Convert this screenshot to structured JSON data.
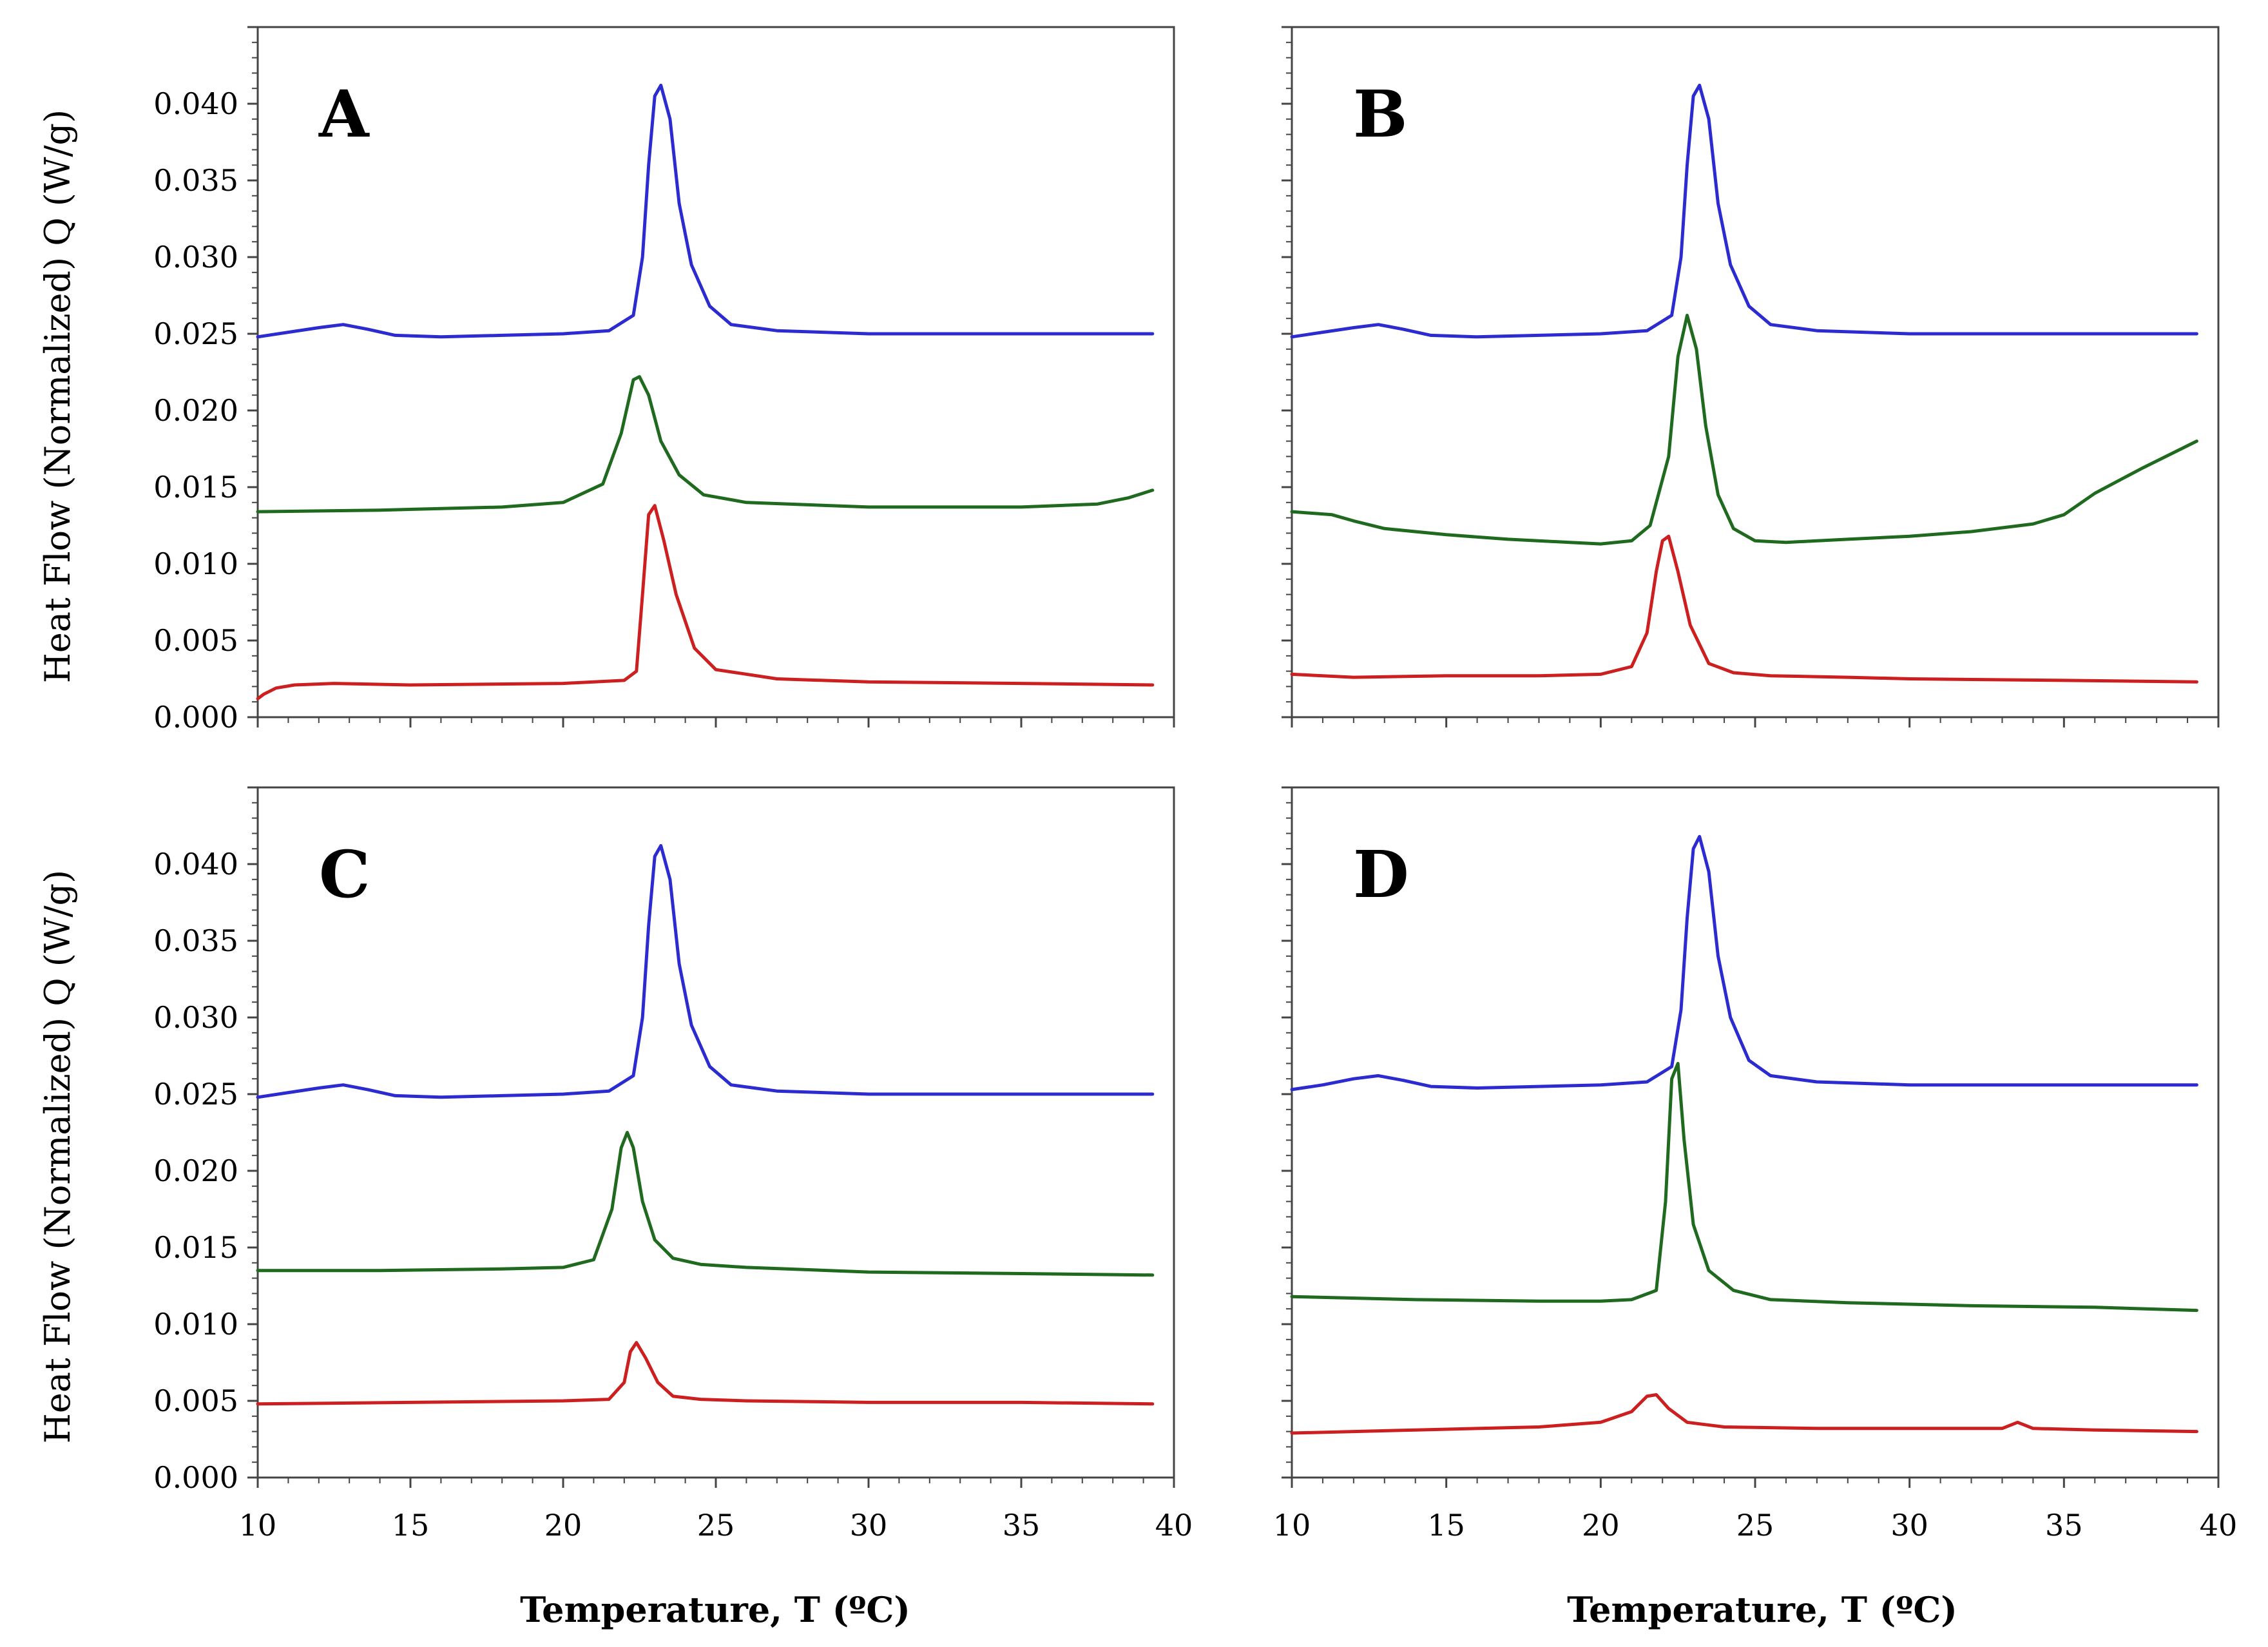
{
  "figure": {
    "ylabel": "Heat Flow (Normalized) Q (W/g)",
    "xlabel": "Temperature, T (ºC)"
  },
  "colors": {
    "blue": "#2b2bd0",
    "green": "#1f6a1f",
    "red": "#cc1f1f"
  },
  "chart_data": [
    {
      "type": "line",
      "panel": "A",
      "xlabel": "",
      "ylabel": "Heat Flow (Normalized) Q (W/g)",
      "xlim": [
        10,
        40
      ],
      "ylim": [
        0,
        0.045
      ],
      "xticks": [],
      "yticks": [
        "0.000",
        "0.005",
        "0.010",
        "0.015",
        "0.020",
        "0.025",
        "0.030",
        "0.035",
        "0.040"
      ],
      "series": [
        {
          "name": "blue",
          "color": "#2b2bd0",
          "x": [
            10,
            11,
            12,
            12.8,
            13.6,
            14.5,
            16,
            18,
            20,
            21.5,
            22.3,
            22.6,
            22.8,
            23.0,
            23.2,
            23.5,
            23.8,
            24.2,
            24.8,
            25.5,
            27,
            30,
            35,
            39.3
          ],
          "y": [
            0.0248,
            0.0251,
            0.0254,
            0.0256,
            0.0253,
            0.0249,
            0.0248,
            0.0249,
            0.025,
            0.0252,
            0.0262,
            0.03,
            0.036,
            0.0405,
            0.0412,
            0.039,
            0.0335,
            0.0295,
            0.0268,
            0.0256,
            0.0252,
            0.025,
            0.025,
            0.025
          ]
        },
        {
          "name": "green",
          "color": "#1f6a1f",
          "x": [
            10,
            14,
            18,
            20,
            21.3,
            21.9,
            22.3,
            22.5,
            22.8,
            23.2,
            23.8,
            24.6,
            26,
            30,
            35,
            37.5,
            38.5,
            39.3
          ],
          "y": [
            0.0134,
            0.0135,
            0.0137,
            0.014,
            0.0152,
            0.0185,
            0.022,
            0.0222,
            0.021,
            0.018,
            0.0158,
            0.0145,
            0.014,
            0.0137,
            0.0137,
            0.0139,
            0.0143,
            0.0148
          ]
        },
        {
          "name": "red",
          "color": "#cc1f1f",
          "x": [
            10,
            10.2,
            10.6,
            11.2,
            12.5,
            15,
            20,
            22,
            22.4,
            22.6,
            22.8,
            23.0,
            23.3,
            23.7,
            24.3,
            25,
            27,
            30,
            35,
            39.3
          ],
          "y": [
            0.0012,
            0.0015,
            0.0019,
            0.0021,
            0.0022,
            0.0021,
            0.0022,
            0.0024,
            0.003,
            0.008,
            0.0132,
            0.0138,
            0.0115,
            0.008,
            0.0045,
            0.0031,
            0.0025,
            0.0023,
            0.0022,
            0.0021
          ]
        }
      ]
    },
    {
      "type": "line",
      "panel": "B",
      "xlabel": "",
      "ylabel": "",
      "xlim": [
        10,
        40
      ],
      "ylim": [
        0,
        0.045
      ],
      "xticks": [],
      "yticks": [],
      "series": [
        {
          "name": "blue",
          "color": "#2b2bd0",
          "x": [
            10,
            11,
            12,
            12.8,
            13.6,
            14.5,
            16,
            18,
            20,
            21.5,
            22.3,
            22.6,
            22.8,
            23.0,
            23.2,
            23.5,
            23.8,
            24.2,
            24.8,
            25.5,
            27,
            30,
            35,
            39.3
          ],
          "y": [
            0.0248,
            0.0251,
            0.0254,
            0.0256,
            0.0253,
            0.0249,
            0.0248,
            0.0249,
            0.025,
            0.0252,
            0.0262,
            0.03,
            0.036,
            0.0405,
            0.0412,
            0.039,
            0.0335,
            0.0295,
            0.0268,
            0.0256,
            0.0252,
            0.025,
            0.025,
            0.025
          ]
        },
        {
          "name": "green",
          "color": "#1f6a1f",
          "x": [
            10,
            11.3,
            12,
            13,
            15,
            17,
            19,
            20,
            21,
            21.6,
            22.2,
            22.5,
            22.8,
            23.1,
            23.4,
            23.8,
            24.3,
            25,
            26,
            28,
            30,
            32,
            34,
            35,
            36,
            37.5,
            39.3
          ],
          "y": [
            0.0134,
            0.0132,
            0.0128,
            0.0123,
            0.0119,
            0.0116,
            0.0114,
            0.0113,
            0.0115,
            0.0125,
            0.017,
            0.0235,
            0.0262,
            0.024,
            0.019,
            0.0145,
            0.0123,
            0.0115,
            0.0114,
            0.0116,
            0.0118,
            0.0121,
            0.0126,
            0.0132,
            0.0146,
            0.0162,
            0.018
          ]
        },
        {
          "name": "red",
          "color": "#cc1f1f",
          "x": [
            10,
            12,
            15,
            18,
            20,
            21,
            21.5,
            21.8,
            22.0,
            22.2,
            22.5,
            22.9,
            23.5,
            24.3,
            25.5,
            28,
            30,
            35,
            39.3
          ],
          "y": [
            0.0028,
            0.0026,
            0.0027,
            0.0027,
            0.0028,
            0.0033,
            0.0055,
            0.0095,
            0.0115,
            0.0118,
            0.0095,
            0.006,
            0.0035,
            0.0029,
            0.0027,
            0.0026,
            0.0025,
            0.0024,
            0.0023
          ]
        }
      ]
    },
    {
      "type": "line",
      "panel": "C",
      "xlabel": "Temperature, T (ºC)",
      "ylabel": "Heat Flow (Normalized) Q (W/g)",
      "xlim": [
        10,
        40
      ],
      "ylim": [
        0,
        0.045
      ],
      "xticks": [
        "10",
        "15",
        "20",
        "25",
        "30",
        "35",
        "40"
      ],
      "yticks": [
        "0.000",
        "0.005",
        "0.010",
        "0.015",
        "0.020",
        "0.025",
        "0.030",
        "0.035",
        "0.040"
      ],
      "series": [
        {
          "name": "blue",
          "color": "#2b2bd0",
          "x": [
            10,
            11,
            12,
            12.8,
            13.6,
            14.5,
            16,
            18,
            20,
            21.5,
            22.3,
            22.6,
            22.8,
            23.0,
            23.2,
            23.5,
            23.8,
            24.2,
            24.8,
            25.5,
            27,
            30,
            35,
            39.3
          ],
          "y": [
            0.0248,
            0.0251,
            0.0254,
            0.0256,
            0.0253,
            0.0249,
            0.0248,
            0.0249,
            0.025,
            0.0252,
            0.0262,
            0.03,
            0.036,
            0.0405,
            0.0412,
            0.039,
            0.0335,
            0.0295,
            0.0268,
            0.0256,
            0.0252,
            0.025,
            0.025,
            0.025
          ]
        },
        {
          "name": "green",
          "color": "#1f6a1f",
          "x": [
            10,
            14,
            18,
            20,
            21,
            21.6,
            21.9,
            22.1,
            22.3,
            22.6,
            23,
            23.6,
            24.5,
            26,
            30,
            35,
            39.3
          ],
          "y": [
            0.0135,
            0.0135,
            0.0136,
            0.0137,
            0.0142,
            0.0175,
            0.0215,
            0.0225,
            0.0215,
            0.018,
            0.0155,
            0.0143,
            0.0139,
            0.0137,
            0.0134,
            0.0133,
            0.0132
          ]
        },
        {
          "name": "red",
          "color": "#cc1f1f",
          "x": [
            10,
            15,
            20,
            21.5,
            22,
            22.2,
            22.4,
            22.7,
            23.1,
            23.6,
            24.5,
            26,
            30,
            35,
            39.3
          ],
          "y": [
            0.0048,
            0.0049,
            0.005,
            0.0051,
            0.0062,
            0.0082,
            0.0088,
            0.0078,
            0.0062,
            0.0053,
            0.0051,
            0.005,
            0.0049,
            0.0049,
            0.0048
          ]
        }
      ]
    },
    {
      "type": "line",
      "panel": "D",
      "xlabel": "Temperature, T (ºC)",
      "ylabel": "",
      "xlim": [
        10,
        40
      ],
      "ylim": [
        0,
        0.045
      ],
      "xticks": [
        "10",
        "15",
        "20",
        "25",
        "30",
        "35",
        "40"
      ],
      "yticks": [],
      "series": [
        {
          "name": "blue",
          "color": "#2b2bd0",
          "x": [
            10,
            11,
            12,
            12.8,
            13.6,
            14.5,
            16,
            18,
            20,
            21.5,
            22.3,
            22.6,
            22.8,
            23.0,
            23.2,
            23.5,
            23.8,
            24.2,
            24.8,
            25.5,
            27,
            30,
            35,
            39.3
          ],
          "y": [
            0.0253,
            0.0256,
            0.026,
            0.0262,
            0.0259,
            0.0255,
            0.0254,
            0.0255,
            0.0256,
            0.0258,
            0.0268,
            0.0305,
            0.0365,
            0.041,
            0.0418,
            0.0395,
            0.034,
            0.03,
            0.0272,
            0.0262,
            0.0258,
            0.0256,
            0.0256,
            0.0256
          ]
        },
        {
          "name": "green",
          "color": "#1f6a1f",
          "x": [
            10,
            14,
            18,
            20,
            21,
            21.8,
            22.1,
            22.3,
            22.5,
            22.7,
            23,
            23.5,
            24.3,
            25.5,
            28,
            32,
            36,
            39.3
          ],
          "y": [
            0.0118,
            0.0116,
            0.0115,
            0.0115,
            0.0116,
            0.0122,
            0.018,
            0.026,
            0.027,
            0.022,
            0.0165,
            0.0135,
            0.0122,
            0.0116,
            0.0114,
            0.0112,
            0.0111,
            0.0109
          ]
        },
        {
          "name": "red",
          "color": "#cc1f1f",
          "x": [
            10,
            14,
            18,
            20,
            21,
            21.5,
            21.8,
            22.2,
            22.8,
            24,
            27,
            30,
            33,
            33.5,
            34,
            36,
            39.3
          ],
          "y": [
            0.0029,
            0.0031,
            0.0033,
            0.0036,
            0.0043,
            0.0053,
            0.0054,
            0.0045,
            0.0036,
            0.0033,
            0.0032,
            0.0032,
            0.0032,
            0.0036,
            0.0032,
            0.0031,
            0.003
          ]
        }
      ]
    }
  ]
}
